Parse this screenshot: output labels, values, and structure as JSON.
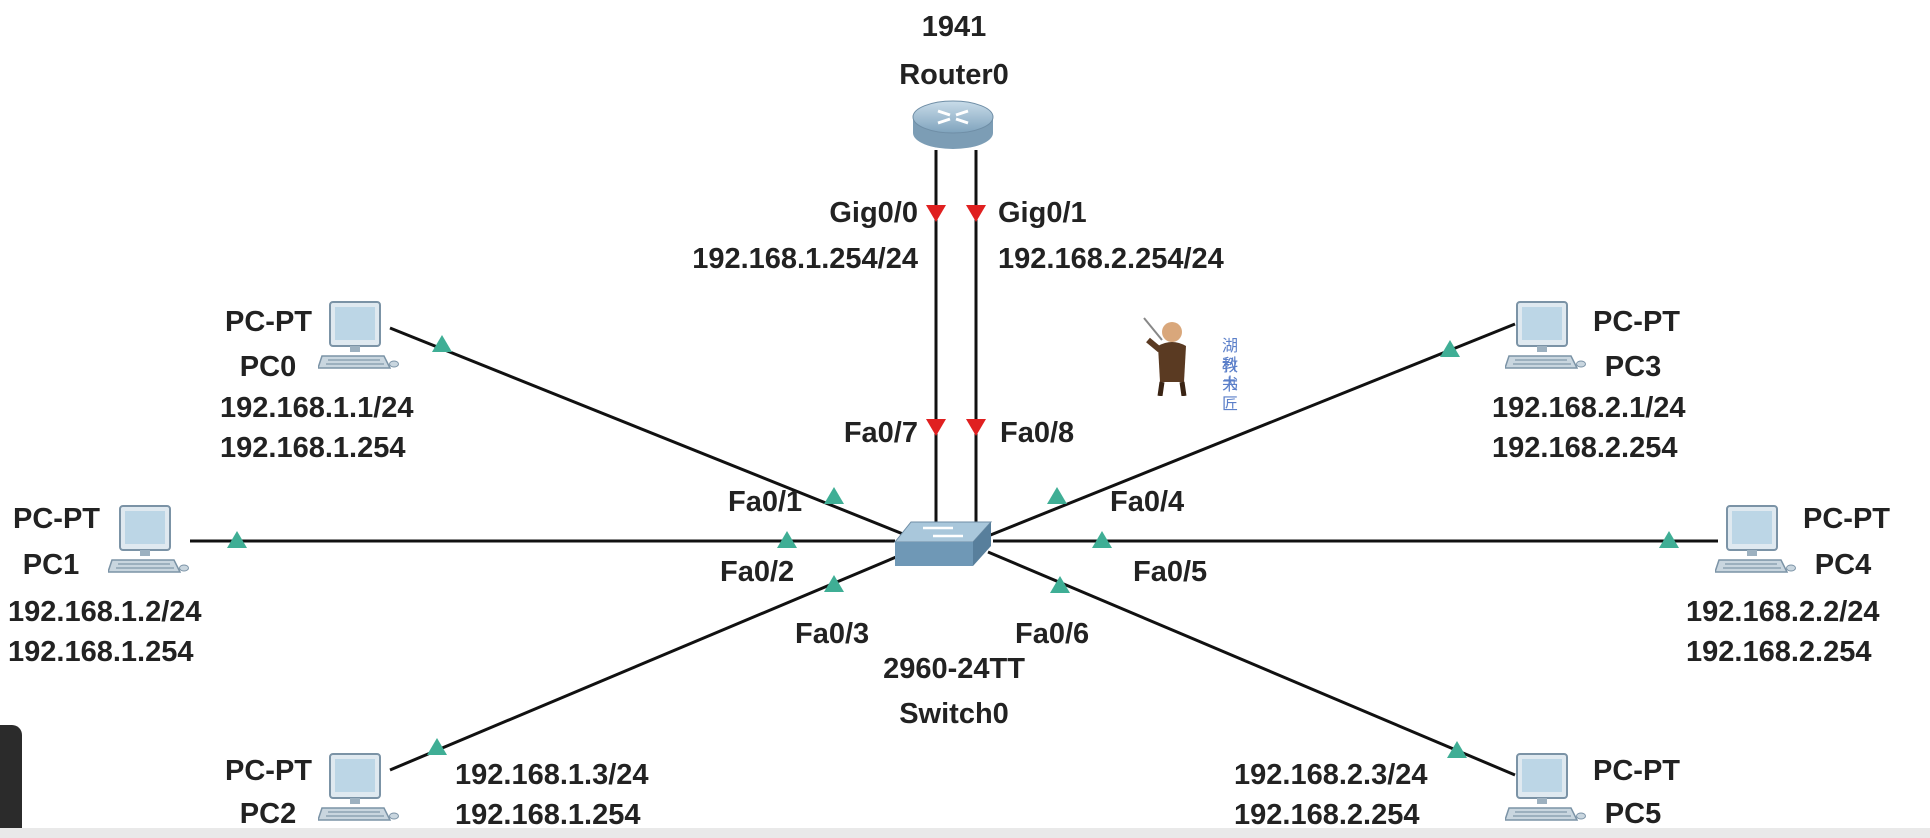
{
  "router": {
    "model": "1941",
    "name": "Router0",
    "ports": [
      {
        "port": "Gig0/0",
        "ip": "192.168.1.254/24"
      },
      {
        "port": "Gig0/1",
        "ip": "192.168.2.254/24"
      }
    ]
  },
  "switch": {
    "model": "2960-24TT",
    "name": "Switch0",
    "uplinks": [
      "Fa0/7",
      "Fa0/8"
    ]
  },
  "pcs": [
    {
      "type": "PC-PT",
      "name": "PC0",
      "ip": "192.168.1.1/24",
      "gateway": "192.168.1.254",
      "port": "Fa0/1"
    },
    {
      "type": "PC-PT",
      "name": "PC1",
      "ip": "192.168.1.2/24",
      "gateway": "192.168.1.254",
      "port": "Fa0/2"
    },
    {
      "type": "PC-PT",
      "name": "PC2",
      "ip": "192.168.1.3/24",
      "gateway": "192.168.1.254",
      "port": "Fa0/3"
    },
    {
      "type": "PC-PT",
      "name": "PC3",
      "ip": "192.168.2.1/24",
      "gateway": "192.168.2.254",
      "port": "Fa0/4"
    },
    {
      "type": "PC-PT",
      "name": "PC4",
      "ip": "192.168.2.2/24",
      "gateway": "192.168.2.254",
      "port": "Fa0/5"
    },
    {
      "type": "PC-PT",
      "name": "PC5",
      "ip": "192.168.2.3/24",
      "gateway": "192.168.2.254",
      "port": "Fa0/6"
    }
  ],
  "watermark": {
    "line1": "湖科大",
    "line2": "教书匠"
  },
  "colors": {
    "link": "#111111",
    "triangle_up": "#3fae95",
    "triangle_down": "#e02020",
    "device": "#6fa6c8"
  }
}
